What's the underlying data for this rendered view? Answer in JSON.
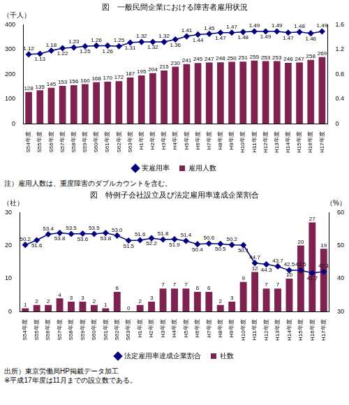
{
  "chart_data": [
    {
      "type": "bar",
      "title": "図　一般民間企業における障害者雇用状況",
      "categories": [
        "S54年度",
        "S55年度",
        "S56年度",
        "S57年度",
        "S58年度",
        "S59年度",
        "S60年度",
        "S61年度",
        "S62年度",
        "S63年度",
        "H1年度",
        "H2年度",
        "H3年度",
        "H4年度",
        "H5年度",
        "H6年度",
        "H7年度",
        "H8年度",
        "H9年度",
        "H10年度",
        "H11年度",
        "H12年度",
        "H13年度",
        "H14年度",
        "H15年度",
        "H16年度",
        "H17年度"
      ],
      "ylabel": "（千人）",
      "ylim": [
        0,
        400
      ],
      "yticks": [
        0,
        100,
        200,
        300,
        400
      ],
      "y2lim": [
        0,
        1.6
      ],
      "y2ticks": [
        0,
        0.4,
        0.8,
        1.2,
        1.6
      ],
      "grid": false,
      "legend": "bottom",
      "data_labels": true,
      "series": [
        {
          "name": "雇用人数",
          "type": "bar",
          "color": "#7f2151",
          "values": [
            128,
            135,
            145,
            153,
            156,
            160,
            168,
            170,
            172,
            187,
            195,
            204,
            215,
            230,
            241,
            245,
            247,
            248,
            250,
            251,
            255,
            253,
            253,
            246,
            247,
            258,
            269
          ]
        },
        {
          "name": "実雇用率",
          "type": "line",
          "color": "#000080",
          "marker": "diamond",
          "line_style": "solid",
          "axis": "y2",
          "values": [
            1.12,
            1.13,
            1.18,
            1.22,
            1.23,
            1.25,
            1.26,
            1.26,
            1.25,
            1.31,
            1.32,
            1.32,
            1.32,
            1.36,
            1.41,
            1.44,
            1.45,
            1.47,
            1.47,
            1.48,
            1.49,
            1.49,
            1.49,
            1.47,
            1.48,
            1.46,
            1.49
          ]
        }
      ],
      "annotations": [
        "注）雇用人数は、重度障害のダブルカウントを含む。"
      ]
    },
    {
      "type": "bar",
      "title": "図　特例子会社設立及び法定雇用率達成企業割合",
      "categories": [
        "S54年度",
        "S55年度",
        "S56年度",
        "S57年度",
        "S58年度",
        "S59年度",
        "S60年度",
        "S61年度",
        "S62年度",
        "S63年度",
        "H1年度",
        "H2年度",
        "H3年度",
        "H4年度",
        "H5年度",
        "H6年度",
        "H7年度",
        "H8年度",
        "H9年度",
        "H10年度",
        "H11年度",
        "H12年度",
        "H13年度",
        "H14年度",
        "H15年度",
        "H16年度",
        "H17年度"
      ],
      "ylabel": "（社）",
      "y2label": "（%）",
      "ylim": [
        0,
        30
      ],
      "yticks": [
        0,
        10,
        20,
        30
      ],
      "y2lim": [
        30,
        60
      ],
      "y2ticks": [
        30,
        40,
        50,
        60
      ],
      "grid": false,
      "legend": "bottom",
      "data_labels": true,
      "series": [
        {
          "name": "社数",
          "type": "bar",
          "color": "#7f2151",
          "values": [
            1,
            2,
            2,
            4,
            3,
            3,
            2,
            1,
            6,
            0,
            2,
            3,
            7,
            7,
            7,
            6,
            6,
            2,
            3,
            9,
            12,
            7,
            7,
            10,
            20,
            27,
            19
          ]
        },
        {
          "name": "法定雇用率達成企業割合",
          "type": "line",
          "color": "#000080",
          "marker": "diamond",
          "line_style": "solid",
          "axis": "y2",
          "values": [
            50.2,
            51.6,
            53.4,
            53.8,
            53.5,
            53.6,
            53.5,
            53.8,
            53.0,
            51.5,
            51.6,
            52.2,
            51.8,
            51.9,
            51.4,
            50.4,
            50.6,
            50.5,
            50.2,
            50.1,
            44.7,
            44.3,
            43.7,
            42.5,
            42.5,
            41.7,
            42.1
          ],
          "value_labels": [
            "50.2",
            "51.6",
            "53.4",
            "53.8",
            "53.5",
            "53.6",
            "53.5",
            "53.8",
            "53.0",
            "51.5",
            "51.6",
            "52.2",
            "51.8",
            "51.9",
            "51.4",
            "50.4",
            "50.6",
            "50.5",
            "50.2",
            "50.1",
            "44.7",
            "44.3",
            "43.7",
            "42.5",
            "42.5",
            "41.7",
            "42.1"
          ]
        }
      ],
      "annotations": [
        "出所）東京労働局HP掲載データ加工",
        "※平成17年度は11月までの設立数である。"
      ]
    }
  ]
}
